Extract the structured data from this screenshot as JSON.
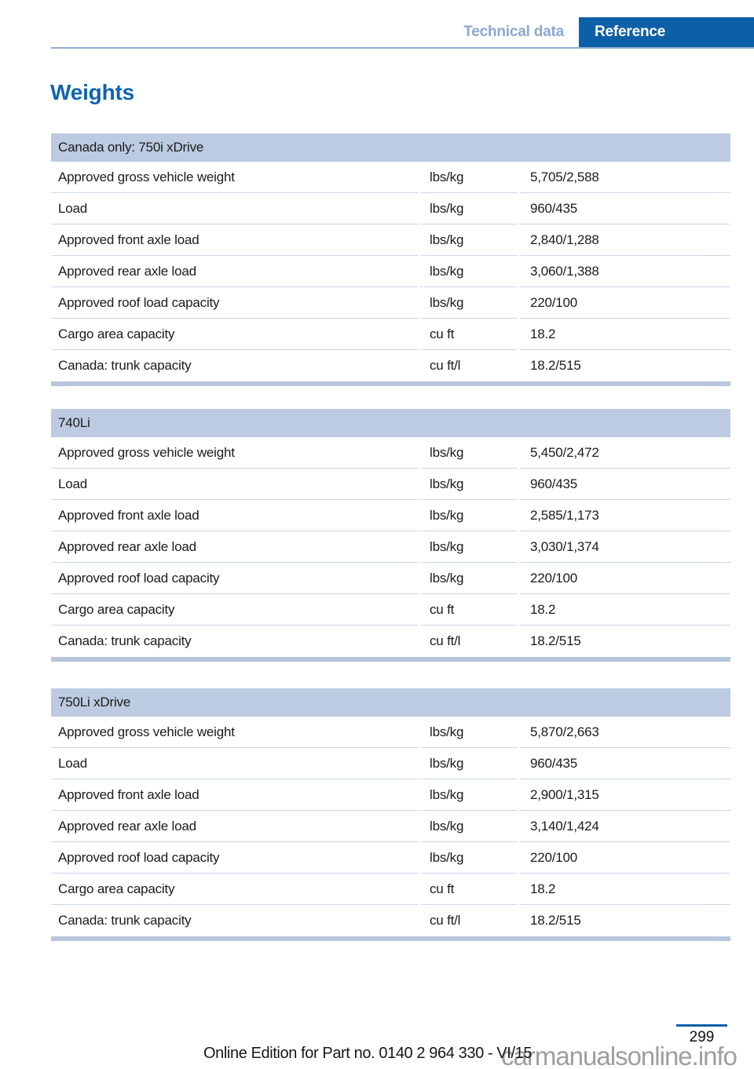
{
  "header": {
    "section_tab": "Technical data",
    "chapter_tab": "Reference"
  },
  "page_title": "Weights",
  "tables": [
    {
      "title": "Canada only: 750i xDrive",
      "rows": [
        [
          "Approved gross vehicle weight",
          "lbs/kg",
          "5,705/2,588"
        ],
        [
          "Load",
          "lbs/kg",
          "960/435"
        ],
        [
          "Approved front axle load",
          "lbs/kg",
          "2,840/1,288"
        ],
        [
          "Approved rear axle load",
          "lbs/kg",
          "3,060/1,388"
        ],
        [
          "Approved roof load capacity",
          "lbs/kg",
          "220/100"
        ],
        [
          "Cargo area capacity",
          "cu ft",
          "18.2"
        ],
        [
          "Canada: trunk capacity",
          "cu ft/l",
          "18.2/515"
        ]
      ]
    },
    {
      "title": "740Li",
      "rows": [
        [
          "Approved gross vehicle weight",
          "lbs/kg",
          "5,450/2,472"
        ],
        [
          "Load",
          "lbs/kg",
          "960/435"
        ],
        [
          "Approved front axle load",
          "lbs/kg",
          "2,585/1,173"
        ],
        [
          "Approved rear axle load",
          "lbs/kg",
          "3,030/1,374"
        ],
        [
          "Approved roof load capacity",
          "lbs/kg",
          "220/100"
        ],
        [
          "Cargo area capacity",
          "cu ft",
          "18.2"
        ],
        [
          "Canada: trunk capacity",
          "cu ft/l",
          "18.2/515"
        ]
      ]
    },
    {
      "title": "750Li xDrive",
      "rows": [
        [
          "Approved gross vehicle weight",
          "lbs/kg",
          "5,870/2,663"
        ],
        [
          "Load",
          "lbs/kg",
          "960/435"
        ],
        [
          "Approved front axle load",
          "lbs/kg",
          "2,900/1,315"
        ],
        [
          "Approved rear axle load",
          "lbs/kg",
          "3,140/1,424"
        ],
        [
          "Approved roof load capacity",
          "lbs/kg",
          "220/100"
        ],
        [
          "Cargo area capacity",
          "cu ft",
          "18.2"
        ],
        [
          "Canada: trunk capacity",
          "cu ft/l",
          "18.2/515"
        ]
      ]
    }
  ],
  "footer": {
    "page_number": "299",
    "edition_text": "Online Edition for Part no. 0140 2 964 330 - VI/15",
    "watermark": "carmanualsonline.info"
  },
  "colors": {
    "chapter_tab_bg": "#0d5fa7",
    "accent_blue": "#0f65af",
    "inactive_tab_text": "#8aa8d2",
    "table_band_bg": "#bccbe1",
    "row_separator": "#c9d7eb",
    "table_bottom_bar": "#b7c6dd",
    "watermark_gray": "#9e9e9e"
  }
}
